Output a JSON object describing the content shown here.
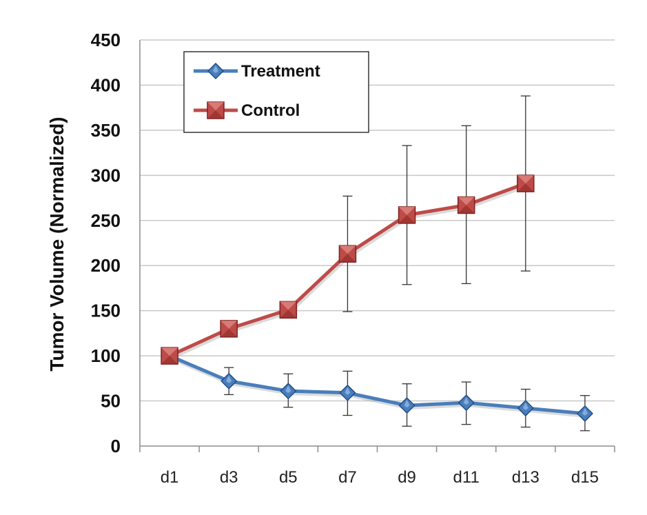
{
  "chart_data": {
    "type": "line",
    "title": "",
    "xlabel": "",
    "ylabel": "Tumor Volume (Normalized)",
    "ylim": [
      0,
      450
    ],
    "yticks": [
      0,
      50,
      100,
      150,
      200,
      250,
      300,
      350,
      400,
      450
    ],
    "categories": [
      "d1",
      "d3",
      "d5",
      "d7",
      "d9",
      "d11",
      "d13",
      "d15"
    ],
    "grid": "horizontal",
    "legend_position": "top-left",
    "series": [
      {
        "name": "Treatment",
        "color": "#4a7ebb",
        "marker": "diamond",
        "values": [
          100,
          72,
          61,
          59,
          45,
          48,
          42,
          36
        ],
        "error_low": [
          100,
          57,
          43,
          34,
          22,
          24,
          21,
          17
        ],
        "error_high": [
          100,
          87,
          80,
          83,
          69,
          71,
          63,
          56
        ]
      },
      {
        "name": "Control",
        "color": "#be4b48",
        "marker": "square",
        "values": [
          100,
          130,
          151,
          213,
          256,
          267,
          291,
          null
        ],
        "error_low": [
          100,
          130,
          151,
          149,
          179,
          180,
          194,
          null
        ],
        "error_high": [
          100,
          130,
          151,
          277,
          333,
          355,
          388,
          null
        ]
      }
    ]
  }
}
